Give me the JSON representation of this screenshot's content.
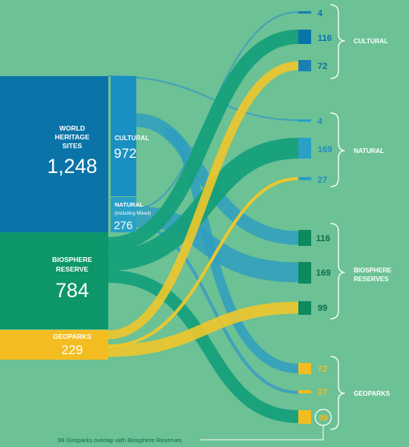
{
  "colors": {
    "background": "#6cc195",
    "world_heritage": "#0a74a8",
    "cultural": "#1a8fc2",
    "natural": "#2aa0c6",
    "biosphere": "#0d9669",
    "geoparks": "#f3bd22",
    "flow_biosphere": "#16a07a",
    "flow_natural": "#3a9fba",
    "flow_geoparks": "#f0c72b"
  },
  "sources": {
    "world_heritage": {
      "line1": "WORLD",
      "line2": "HERITAGE",
      "line3": "SITES",
      "value": "1,248"
    },
    "cultural": {
      "label": "CULTURAL",
      "value": "972"
    },
    "natural": {
      "label": "NATURAL",
      "sublabel": "(including Mixed)",
      "value": "276"
    },
    "biosphere": {
      "line1": "BIOSPHERE",
      "line2": "RESERVE",
      "value": "784"
    },
    "geoparks": {
      "label": "GEOPARKS",
      "value": "229"
    }
  },
  "targets": {
    "cultural": {
      "label": "CULTURAL",
      "values": [
        "4",
        "116",
        "72"
      ]
    },
    "natural": {
      "label": "NATURAL",
      "values": [
        "4",
        "169",
        "27"
      ]
    },
    "biosphere": {
      "line1": "BIOSPHERE",
      "line2": "RESERVES",
      "values": [
        "116",
        "169",
        "99"
      ]
    },
    "geoparks": {
      "label": "GEOPARKS",
      "values": [
        "72",
        "27",
        "99"
      ]
    }
  },
  "footnote": "99 Geoparks overlap with Biosphere Reserves"
}
